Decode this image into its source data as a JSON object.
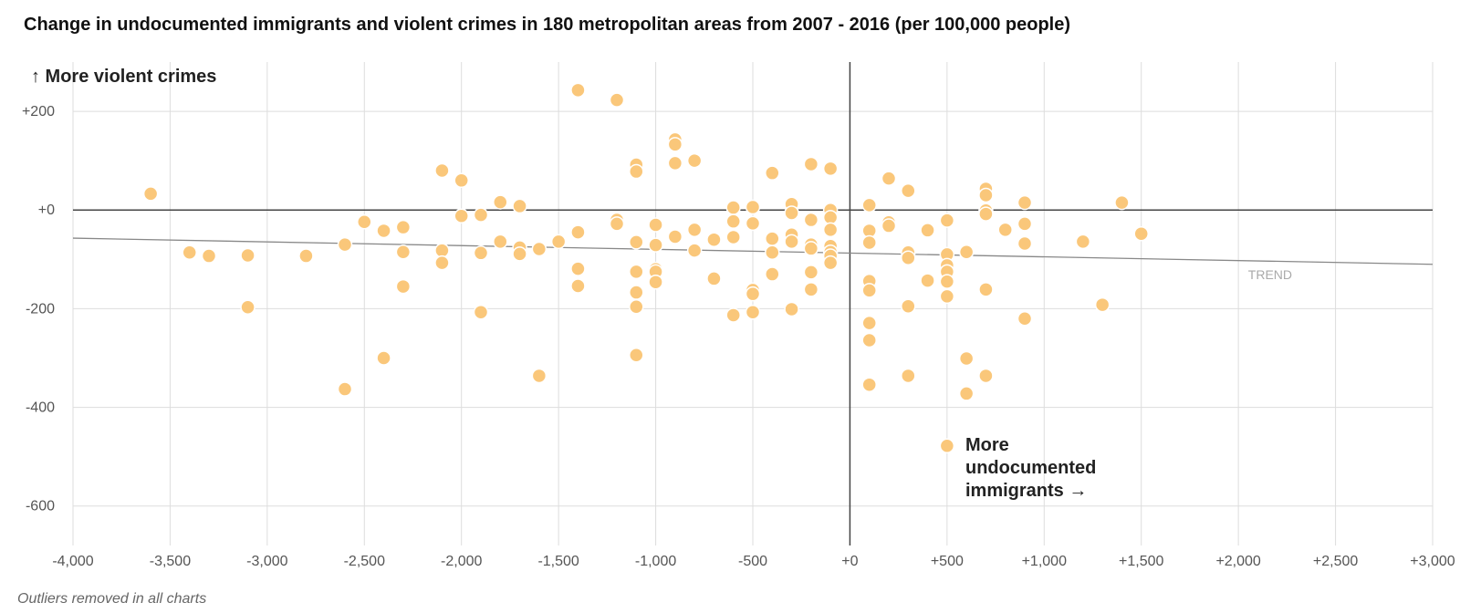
{
  "page": {
    "title": "Change in undocumented immigrants and violent crimes in 180 metropolitan areas from 2007 - 2016 (per 100,000 people)",
    "footnote": "Outliers removed in all charts"
  },
  "colors": {
    "point": "#fac77a",
    "point_stroke": "#ffffff",
    "grid": "#dddddd",
    "zero_line": "#444444",
    "trend": "#888888"
  },
  "chart_data": {
    "type": "scatter",
    "title": "Change in undocumented immigrants and violent crimes in 180 metropolitan areas from 2007 - 2016 (per 100,000 people)",
    "xlim": [
      -4000,
      3000
    ],
    "ylim": [
      -680,
      300
    ],
    "x_ticks": [
      {
        "value": -4000,
        "label": "-4,000"
      },
      {
        "value": -3500,
        "label": "-3,500"
      },
      {
        "value": -3000,
        "label": "-3,000"
      },
      {
        "value": -2500,
        "label": "-2,500"
      },
      {
        "value": -2000,
        "label": "-2,000"
      },
      {
        "value": -1500,
        "label": "-1,500"
      },
      {
        "value": -1000,
        "label": "-1,000"
      },
      {
        "value": -500,
        "label": "-500"
      },
      {
        "value": 0,
        "label": "+0"
      },
      {
        "value": 500,
        "label": "+500"
      },
      {
        "value": 1000,
        "label": "+1,000"
      },
      {
        "value": 1500,
        "label": "+1,500"
      },
      {
        "value": 2000,
        "label": "+2,000"
      },
      {
        "value": 2500,
        "label": "+2,500"
      },
      {
        "value": 3000,
        "label": "+3,000"
      }
    ],
    "y_ticks": [
      {
        "value": 200,
        "label": "+200"
      },
      {
        "value": 0,
        "label": "+0"
      },
      {
        "value": -200,
        "label": "-200"
      },
      {
        "value": -400,
        "label": "-400"
      },
      {
        "value": -600,
        "label": "-600"
      }
    ],
    "grid": true,
    "y_annotation": "↑ More violent crimes",
    "x_annotation": [
      "More",
      "undocumented",
      "immigrants →"
    ],
    "trend": {
      "label": "TREND",
      "from": [
        -4000,
        -57
      ],
      "to": [
        3000,
        -110
      ]
    },
    "points": [
      {
        "x": -3600,
        "y": 33
      },
      {
        "x": -3400,
        "y": -86
      },
      {
        "x": -3300,
        "y": -93
      },
      {
        "x": -3100,
        "y": -92
      },
      {
        "x": -3100,
        "y": -197
      },
      {
        "x": -2800,
        "y": -93
      },
      {
        "x": -2600,
        "y": -70
      },
      {
        "x": -2600,
        "y": -363
      },
      {
        "x": -2500,
        "y": -24
      },
      {
        "x": -2400,
        "y": -42
      },
      {
        "x": -2400,
        "y": -300
      },
      {
        "x": -2300,
        "y": -35
      },
      {
        "x": -2300,
        "y": -85
      },
      {
        "x": -2300,
        "y": -155
      },
      {
        "x": -2100,
        "y": 80
      },
      {
        "x": -2100,
        "y": -82
      },
      {
        "x": -2100,
        "y": -107
      },
      {
        "x": -2000,
        "y": 60
      },
      {
        "x": -2000,
        "y": -12
      },
      {
        "x": -1900,
        "y": -10
      },
      {
        "x": -1900,
        "y": -87
      },
      {
        "x": -1900,
        "y": -207
      },
      {
        "x": -1800,
        "y": 16
      },
      {
        "x": -1800,
        "y": -64
      },
      {
        "x": -1700,
        "y": 8
      },
      {
        "x": -1700,
        "y": -76
      },
      {
        "x": -1700,
        "y": -89
      },
      {
        "x": -1600,
        "y": -79
      },
      {
        "x": -1600,
        "y": -336
      },
      {
        "x": -1500,
        "y": -64
      },
      {
        "x": -1400,
        "y": 243
      },
      {
        "x": -1400,
        "y": -45
      },
      {
        "x": -1400,
        "y": -119
      },
      {
        "x": -1400,
        "y": -154
      },
      {
        "x": -1200,
        "y": 223
      },
      {
        "x": -1200,
        "y": -20
      },
      {
        "x": -1200,
        "y": -28
      },
      {
        "x": -1100,
        "y": 92
      },
      {
        "x": -1100,
        "y": 78
      },
      {
        "x": -1100,
        "y": -65
      },
      {
        "x": -1100,
        "y": -125
      },
      {
        "x": -1100,
        "y": -167
      },
      {
        "x": -1100,
        "y": -196
      },
      {
        "x": -1100,
        "y": -294
      },
      {
        "x": -1000,
        "y": -30
      },
      {
        "x": -1000,
        "y": -71
      },
      {
        "x": -1000,
        "y": -120
      },
      {
        "x": -1000,
        "y": -125
      },
      {
        "x": -1000,
        "y": -146
      },
      {
        "x": -900,
        "y": 143
      },
      {
        "x": -900,
        "y": 133
      },
      {
        "x": -900,
        "y": 95
      },
      {
        "x": -900,
        "y": -54
      },
      {
        "x": -800,
        "y": 100
      },
      {
        "x": -800,
        "y": -40
      },
      {
        "x": -800,
        "y": -82
      },
      {
        "x": -700,
        "y": -60
      },
      {
        "x": -700,
        "y": -139
      },
      {
        "x": -600,
        "y": 5
      },
      {
        "x": -600,
        "y": -23
      },
      {
        "x": -600,
        "y": -55
      },
      {
        "x": -600,
        "y": -213
      },
      {
        "x": -500,
        "y": 6
      },
      {
        "x": -500,
        "y": -27
      },
      {
        "x": -500,
        "y": -162
      },
      {
        "x": -500,
        "y": -170
      },
      {
        "x": -500,
        "y": -207
      },
      {
        "x": -400,
        "y": 75
      },
      {
        "x": -400,
        "y": -58
      },
      {
        "x": -400,
        "y": -86
      },
      {
        "x": -400,
        "y": -130
      },
      {
        "x": -300,
        "y": 12
      },
      {
        "x": -300,
        "y": -6
      },
      {
        "x": -300,
        "y": -50
      },
      {
        "x": -300,
        "y": -64
      },
      {
        "x": -300,
        "y": -201
      },
      {
        "x": -200,
        "y": 93
      },
      {
        "x": -200,
        "y": -20
      },
      {
        "x": -200,
        "y": -70
      },
      {
        "x": -200,
        "y": -78
      },
      {
        "x": -200,
        "y": -126
      },
      {
        "x": -200,
        "y": -161
      },
      {
        "x": -100,
        "y": 84
      },
      {
        "x": -100,
        "y": 0
      },
      {
        "x": -100,
        "y": -15
      },
      {
        "x": -100,
        "y": -40
      },
      {
        "x": -100,
        "y": -73
      },
      {
        "x": -100,
        "y": -85
      },
      {
        "x": -100,
        "y": -93
      },
      {
        "x": -100,
        "y": -107
      },
      {
        "x": 100,
        "y": 10
      },
      {
        "x": 100,
        "y": -42
      },
      {
        "x": 100,
        "y": -66
      },
      {
        "x": 100,
        "y": -144
      },
      {
        "x": 100,
        "y": -163
      },
      {
        "x": 100,
        "y": -229
      },
      {
        "x": 100,
        "y": -264
      },
      {
        "x": 100,
        "y": -354
      },
      {
        "x": 200,
        "y": 64
      },
      {
        "x": 200,
        "y": -25
      },
      {
        "x": 200,
        "y": -32
      },
      {
        "x": 300,
        "y": 39
      },
      {
        "x": 300,
        "y": -86
      },
      {
        "x": 300,
        "y": -97
      },
      {
        "x": 300,
        "y": -195
      },
      {
        "x": 300,
        "y": -336
      },
      {
        "x": 400,
        "y": -41
      },
      {
        "x": 400,
        "y": -143
      },
      {
        "x": 500,
        "y": -21
      },
      {
        "x": 500,
        "y": -90
      },
      {
        "x": 500,
        "y": -112
      },
      {
        "x": 500,
        "y": -125
      },
      {
        "x": 500,
        "y": -145
      },
      {
        "x": 500,
        "y": -175
      },
      {
        "x": 600,
        "y": -85
      },
      {
        "x": 600,
        "y": -301
      },
      {
        "x": 600,
        "y": -372
      },
      {
        "x": 700,
        "y": 43
      },
      {
        "x": 700,
        "y": 30
      },
      {
        "x": 700,
        "y": -1
      },
      {
        "x": 700,
        "y": -8
      },
      {
        "x": 700,
        "y": -161
      },
      {
        "x": 700,
        "y": -336
      },
      {
        "x": 800,
        "y": -40
      },
      {
        "x": 900,
        "y": 15
      },
      {
        "x": 900,
        "y": -28
      },
      {
        "x": 900,
        "y": -68
      },
      {
        "x": 900,
        "y": -220
      },
      {
        "x": 1200,
        "y": -64
      },
      {
        "x": 1300,
        "y": -192
      },
      {
        "x": 1400,
        "y": 15
      },
      {
        "x": 1500,
        "y": -48
      }
    ]
  }
}
